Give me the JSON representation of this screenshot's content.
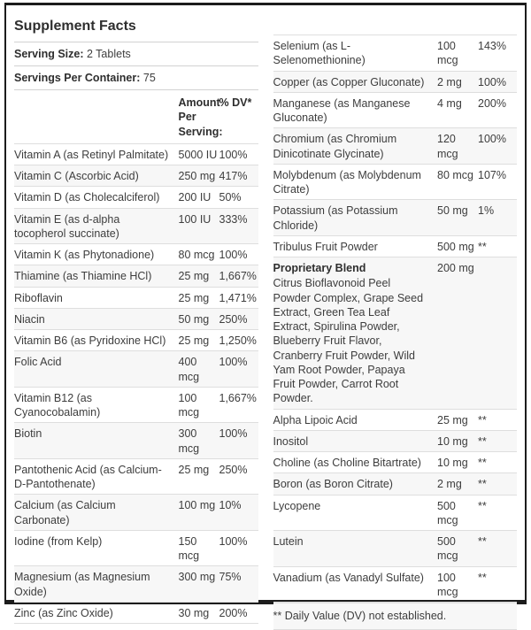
{
  "colors": {
    "outer_border": "#1c1c1c",
    "separator": "#dedede",
    "text": "#3d3d3d",
    "alt_row": "#f7f7f7"
  },
  "header": {
    "title": "Supplement Facts",
    "serving_size_label": "Serving Size:",
    "serving_size_value": "2 Tablets",
    "servings_per_container_label": "Servings Per Container:",
    "servings_per_container_value": "75",
    "amount_header": "Amount Per Serving:",
    "dv_header": "% DV*"
  },
  "left_rows": [
    {
      "name": "Vitamin A (as Retinyl Palmitate)",
      "amount": "5000 IU",
      "dv": "100%"
    },
    {
      "name": "Vitamin C (Ascorbic Acid)",
      "amount": "250 mg",
      "dv": "417%"
    },
    {
      "name": "Vitamin D (as Cholecalciferol)",
      "amount": "200 IU",
      "dv": "50%"
    },
    {
      "name": "Vitamin E (as d-alpha tocopherol succinate)",
      "amount": "100 IU",
      "dv": "333%"
    },
    {
      "name": "Vitamin K (as Phytonadione)",
      "amount": "80 mcg",
      "dv": "100%"
    },
    {
      "name": "Thiamine (as Thiamine HCl)",
      "amount": "25 mg",
      "dv": "1,667%"
    },
    {
      "name": "Riboflavin",
      "amount": "25 mg",
      "dv": "1,471%"
    },
    {
      "name": "Niacin",
      "amount": "50 mg",
      "dv": "250%"
    },
    {
      "name": "Vitamin B6 (as Pyridoxine HCl)",
      "amount": "25 mg",
      "dv": "1,250%"
    },
    {
      "name": "Folic Acid",
      "amount": "400 mcg",
      "dv": "100%"
    },
    {
      "name": "Vitamin B12 (as Cyanocobalamin)",
      "amount": "100 mcg",
      "dv": "1,667%"
    },
    {
      "name": "Biotin",
      "amount": "300 mcg",
      "dv": "100%"
    },
    {
      "name": "Pantothenic Acid (as Calcium-D-Pantothenate)",
      "amount": "25 mg",
      "dv": "250%"
    },
    {
      "name": "Calcium (as Calcium Carbonate)",
      "amount": "100 mg",
      "dv": "10%"
    },
    {
      "name": "Iodine (from Kelp)",
      "amount": "150 mcg",
      "dv": "100%"
    },
    {
      "name": "Magnesium (as Magnesium Oxide)",
      "amount": "300 mg",
      "dv": "75%"
    },
    {
      "name": "Zinc (as Zinc Oxide)",
      "amount": "30 mg",
      "dv": "200%"
    }
  ],
  "right_rows": [
    {
      "name": "Selenium (as L-Selenomethionine)",
      "amount": "100 mcg",
      "dv": "143%"
    },
    {
      "name": "Copper (as Copper Gluconate)",
      "amount": "2 mg",
      "dv": "100%"
    },
    {
      "name": "Manganese (as Manganese Gluconate)",
      "amount": "4 mg",
      "dv": "200%"
    },
    {
      "name": "Chromium (as Chromium Dinicotinate Glycinate)",
      "amount": "120 mcg",
      "dv": "100%"
    },
    {
      "name": "Molybdenum (as Molybdenum Citrate)",
      "amount": "80 mcg",
      "dv": "107%"
    },
    {
      "name": "Potassium (as Potassium Chloride)",
      "amount": "50 mg",
      "dv": "1%"
    },
    {
      "name": "Tribulus Fruit Powder",
      "amount": "500 mg",
      "dv": "**"
    },
    {
      "name": "Proprietary Blend",
      "amount": "200 mg",
      "dv": "",
      "bold": true,
      "desc": "Citrus Bioflavonoid Peel Powder Complex, Grape Seed Extract, Green Tea Leaf Extract, Spirulina Powder, Blueberry Fruit Flavor, Cranberry Fruit Powder, Wild Yam Root Powder, Papaya Fruit Powder, Carrot Root Powder."
    },
    {
      "name": "Alpha Lipoic Acid",
      "amount": "25 mg",
      "dv": "**"
    },
    {
      "name": "Inositol",
      "amount": "10 mg",
      "dv": "**"
    },
    {
      "name": "Choline (as Choline Bitartrate)",
      "amount": "10 mg",
      "dv": "**"
    },
    {
      "name": "Boron (as Boron Citrate)",
      "amount": "2 mg",
      "dv": "**"
    },
    {
      "name": "Lycopene",
      "amount": "500 mcg",
      "dv": "**"
    },
    {
      "name": "Lutein",
      "amount": "500 mcg",
      "dv": "**"
    },
    {
      "name": "Vanadium (as Vanadyl Sulfate)",
      "amount": "100 mcg",
      "dv": "**"
    }
  ],
  "footnote": "** Daily Value (DV) not established."
}
